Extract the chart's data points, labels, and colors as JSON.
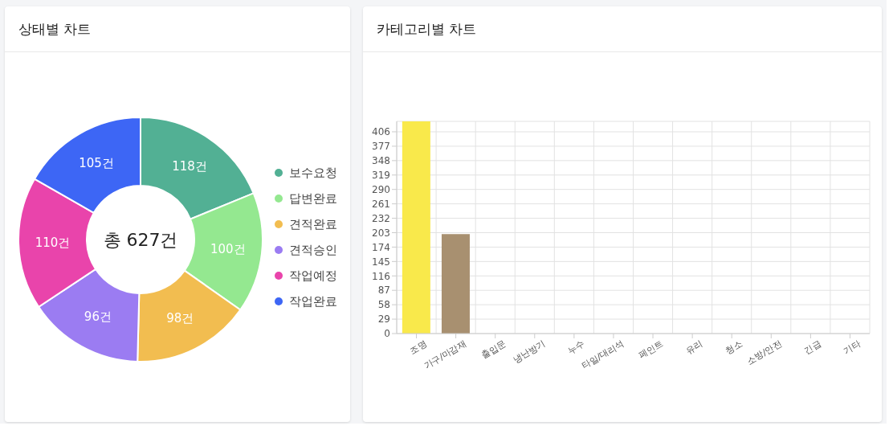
{
  "chart_data": [
    {
      "type": "donut",
      "title": "상태별 차트",
      "categories": [
        "보수요청",
        "답변완료",
        "견적완료",
        "견적승인",
        "작업예정",
        "작업완료"
      ],
      "values": [
        118,
        100,
        98,
        96,
        110,
        105
      ],
      "colors": [
        "#52b094",
        "#94e890",
        "#f2bd50",
        "#9b7cf2",
        "#e944ab",
        "#3d66f5"
      ],
      "value_labels": [
        "118건",
        "100건",
        "98건",
        "96건",
        "110건",
        "105건"
      ],
      "annotations": [
        "총 627건"
      ],
      "legend": "right"
    },
    {
      "type": "bar",
      "title": "카테고리별 차트",
      "categories": [
        "조명",
        "가구/마감재",
        "출입문",
        "냉난방기",
        "누수",
        "타일/대리석",
        "페인트",
        "유리",
        "청소",
        "소방/안전",
        "긴급",
        "기타"
      ],
      "values": [
        427,
        200,
        0,
        0,
        0,
        0,
        0,
        0,
        0,
        0,
        0,
        0
      ],
      "colors": [
        "#f9e94b",
        "#a89070",
        null,
        null,
        null,
        null,
        null,
        null,
        null,
        null,
        null,
        null
      ],
      "ylim": [
        0,
        427
      ],
      "yticks": [
        0,
        29,
        58,
        87,
        116,
        145,
        174,
        203,
        232,
        261,
        290,
        319,
        348,
        377,
        406
      ],
      "grid": true
    }
  ]
}
